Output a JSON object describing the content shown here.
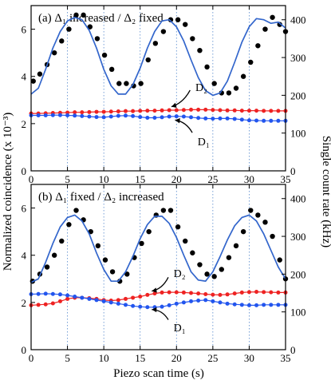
{
  "figure": {
    "ylabel_left": "Normalized coincidence (x 10⁻³)",
    "ylabel_right": "Single count rate (kHz)",
    "xlabel": "Piezo scan time (s)"
  },
  "colors": {
    "coincidence_points": "#000000",
    "fit_curve": "#3366cc",
    "d2_series": "#ee2222",
    "d1_series": "#2255ee",
    "gridline": "#5588cc",
    "axes": "#000000"
  },
  "chart_data": [
    {
      "type": "scatter",
      "panel_label": "(a)",
      "title": "(a) Δ₁ increased / Δ₂ fixed",
      "xlim": [
        0,
        35
      ],
      "ylim": [
        0,
        7
      ],
      "ylim_right": [
        0,
        437.5
      ],
      "x_ticks": [
        0,
        5,
        10,
        15,
        20,
        25,
        30,
        35
      ],
      "y_ticks": [
        0,
        2,
        4,
        6
      ],
      "y_ticks_right": [
        0,
        100,
        200,
        300,
        400
      ],
      "grid_x": [
        5,
        10,
        15,
        20,
        25,
        30
      ],
      "annotations": [
        "D₂",
        "D₁"
      ],
      "series": [
        {
          "kind": "points",
          "axis": "left",
          "x": [
            0.3,
            1.2,
            2.2,
            3.2,
            4.2,
            5.2,
            6.2,
            7.2,
            8.1,
            9.1,
            10.1,
            11.1,
            12.1,
            13.1,
            14.1,
            15.1,
            16.1,
            17.1,
            18.2,
            19.2,
            20.2,
            21.2,
            22.2,
            23.2,
            24.2,
            25.2,
            26.2,
            27.2,
            28.2,
            29.2,
            30.2,
            31.2,
            32.2,
            33.2,
            34.2,
            35.0
          ],
          "y": [
            3.8,
            4.1,
            4.5,
            5.0,
            5.5,
            6.0,
            6.6,
            6.6,
            6.1,
            5.6,
            4.9,
            4.3,
            3.7,
            3.7,
            3.6,
            3.7,
            4.7,
            5.4,
            5.9,
            6.4,
            6.4,
            6.2,
            5.6,
            5.1,
            4.4,
            3.7,
            3.3,
            3.3,
            3.5,
            4.0,
            4.6,
            5.3,
            6.0,
            6.5,
            6.2,
            5.9
          ]
        },
        {
          "kind": "fit",
          "axis": "left",
          "x": [
            0,
            1,
            2,
            3,
            4,
            5,
            6,
            7,
            8,
            9,
            10,
            11,
            12,
            13,
            14,
            15,
            16,
            17,
            18,
            19,
            20,
            21,
            22,
            23,
            24,
            25,
            26,
            27,
            28,
            29,
            30,
            31,
            32,
            33,
            34,
            35
          ],
          "y": [
            3.25,
            3.5,
            4.3,
            5.2,
            5.9,
            6.35,
            6.5,
            6.4,
            5.95,
            5.2,
            4.3,
            3.6,
            3.25,
            3.25,
            3.65,
            4.35,
            5.2,
            5.9,
            6.35,
            6.4,
            6.1,
            5.5,
            4.7,
            3.95,
            3.4,
            3.2,
            3.3,
            3.8,
            4.6,
            5.45,
            6.1,
            6.45,
            6.4,
            6.25,
            6.3,
            6.05
          ]
        },
        {
          "name": "D₂",
          "kind": "dots-line",
          "axis": "left",
          "x": [
            0,
            1,
            2,
            3,
            4,
            5,
            6,
            7,
            8,
            9,
            10,
            11,
            12,
            13,
            14,
            15,
            16,
            17,
            18,
            19,
            20,
            21,
            22,
            23,
            24,
            25,
            26,
            27,
            28,
            29,
            30,
            31,
            32,
            33,
            34,
            35
          ],
          "y": [
            2.43,
            2.43,
            2.44,
            2.45,
            2.46,
            2.47,
            2.48,
            2.48,
            2.49,
            2.5,
            2.5,
            2.51,
            2.52,
            2.53,
            2.53,
            2.54,
            2.55,
            2.55,
            2.56,
            2.57,
            2.57,
            2.58,
            2.59,
            2.59,
            2.59,
            2.58,
            2.57,
            2.56,
            2.56,
            2.55,
            2.55,
            2.55,
            2.54,
            2.54,
            2.54,
            2.54
          ]
        },
        {
          "name": "D₁",
          "kind": "dots-line",
          "axis": "left",
          "x": [
            0,
            1,
            2,
            3,
            4,
            5,
            6,
            7,
            8,
            9,
            10,
            11,
            12,
            13,
            14,
            15,
            16,
            17,
            18,
            19,
            20,
            21,
            22,
            23,
            24,
            25,
            26,
            27,
            28,
            29,
            30,
            31,
            32,
            33,
            34,
            35
          ],
          "y": [
            2.35,
            2.35,
            2.35,
            2.36,
            2.36,
            2.35,
            2.34,
            2.32,
            2.3,
            2.28,
            2.27,
            2.3,
            2.33,
            2.34,
            2.32,
            2.28,
            2.25,
            2.25,
            2.27,
            2.3,
            2.31,
            2.3,
            2.27,
            2.24,
            2.22,
            2.21,
            2.22,
            2.22,
            2.2,
            2.17,
            2.14,
            2.13,
            2.12,
            2.12,
            2.12,
            2.12
          ]
        }
      ]
    },
    {
      "type": "scatter",
      "panel_label": "(b)",
      "title": "(b) Δ₁ fixed / Δ₂ increased",
      "xlim": [
        0,
        35
      ],
      "ylim": [
        0,
        7
      ],
      "ylim_right": [
        0,
        437.5
      ],
      "x_ticks": [
        0,
        5,
        10,
        15,
        20,
        25,
        30,
        35
      ],
      "y_ticks": [
        0,
        2,
        4,
        6
      ],
      "y_ticks_right": [
        0,
        100,
        200,
        300,
        400
      ],
      "grid_x": [
        5,
        10,
        15,
        20,
        25,
        30
      ],
      "annotations": [
        "D₂",
        "D₁"
      ],
      "series": [
        {
          "kind": "points",
          "axis": "left",
          "x": [
            0.2,
            1.2,
            2.2,
            3.2,
            4.2,
            5.2,
            6.2,
            7.2,
            8.2,
            9.2,
            10.2,
            11.2,
            12.2,
            13.2,
            14.2,
            15.2,
            16.2,
            17.2,
            18.2,
            19.2,
            20.2,
            21.2,
            22.2,
            23.2,
            24.2,
            25.2,
            26.2,
            27.2,
            28.2,
            29.2,
            30.2,
            31.2,
            32.2,
            33.2,
            34.2,
            35.0
          ],
          "y": [
            2.9,
            3.2,
            3.5,
            4.0,
            4.6,
            5.3,
            5.9,
            5.5,
            5.0,
            4.4,
            3.8,
            3.3,
            2.9,
            3.2,
            3.9,
            4.5,
            5.0,
            5.7,
            5.9,
            5.9,
            5.2,
            4.6,
            4.1,
            3.6,
            3.2,
            3.1,
            3.4,
            3.9,
            4.4,
            5.0,
            5.9,
            5.7,
            5.4,
            4.8,
            3.8,
            3.0
          ]
        },
        {
          "kind": "fit",
          "axis": "left",
          "x": [
            0,
            1,
            2,
            3,
            4,
            5,
            6,
            7,
            8,
            9,
            10,
            11,
            12,
            13,
            14,
            15,
            16,
            17,
            18,
            19,
            20,
            21,
            22,
            23,
            24,
            25,
            26,
            27,
            28,
            29,
            30,
            31,
            32,
            33,
            34,
            35
          ],
          "y": [
            2.85,
            3.0,
            3.7,
            4.5,
            5.2,
            5.6,
            5.7,
            5.45,
            4.9,
            4.1,
            3.4,
            2.9,
            2.9,
            3.3,
            3.95,
            4.7,
            5.3,
            5.65,
            5.65,
            5.35,
            4.75,
            4.0,
            3.3,
            2.95,
            2.9,
            3.3,
            3.95,
            4.65,
            5.25,
            5.6,
            5.7,
            5.45,
            4.9,
            4.2,
            3.5,
            3.0
          ]
        },
        {
          "name": "D₂",
          "kind": "dots-line",
          "axis": "left",
          "x": [
            0,
            1,
            2,
            3,
            4,
            5,
            6,
            7,
            8,
            9,
            10,
            11,
            12,
            13,
            14,
            15,
            16,
            17,
            18,
            19,
            20,
            21,
            22,
            23,
            24,
            25,
            26,
            27,
            28,
            29,
            30,
            31,
            32,
            33,
            34,
            35
          ],
          "y": [
            1.88,
            1.9,
            1.92,
            1.96,
            2.05,
            2.15,
            2.2,
            2.2,
            2.18,
            2.15,
            2.1,
            2.08,
            2.1,
            2.15,
            2.2,
            2.25,
            2.32,
            2.38,
            2.42,
            2.43,
            2.43,
            2.42,
            2.4,
            2.38,
            2.35,
            2.33,
            2.32,
            2.34,
            2.38,
            2.42,
            2.44,
            2.45,
            2.44,
            2.43,
            2.42,
            2.42
          ]
        },
        {
          "name": "D₁",
          "kind": "dots-line",
          "axis": "left",
          "x": [
            0,
            1,
            2,
            3,
            4,
            5,
            6,
            7,
            8,
            9,
            10,
            11,
            12,
            13,
            14,
            15,
            16,
            17,
            18,
            19,
            20,
            21,
            22,
            23,
            24,
            25,
            26,
            27,
            28,
            29,
            30,
            31,
            32,
            33,
            34,
            35
          ],
          "y": [
            2.35,
            2.36,
            2.37,
            2.36,
            2.34,
            2.3,
            2.25,
            2.2,
            2.15,
            2.1,
            2.05,
            2.0,
            1.95,
            1.9,
            1.85,
            1.82,
            1.8,
            1.8,
            1.82,
            1.88,
            1.95,
            2.0,
            2.05,
            2.08,
            2.1,
            2.05,
            2.0,
            1.95,
            1.92,
            1.9,
            1.88,
            1.88,
            1.9,
            1.9,
            1.9,
            1.9
          ]
        }
      ]
    }
  ]
}
